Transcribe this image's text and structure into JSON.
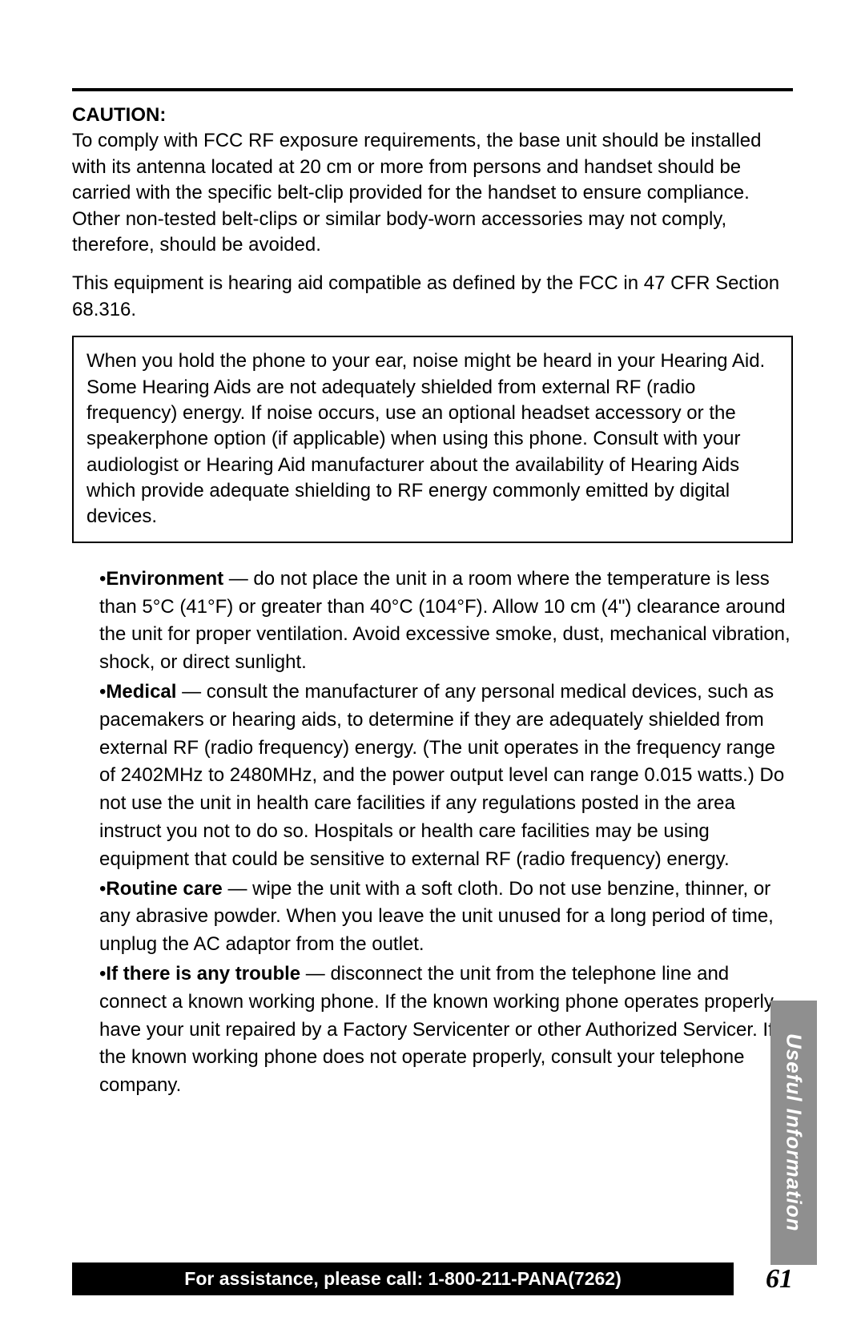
{
  "caution_heading": "CAUTION:",
  "caution_para1": "To comply with FCC RF exposure requirements, the base unit should be installed with its antenna located at 20 cm or more from persons and handset should be carried with the specific belt-clip provided for the handset to ensure compliance. Other non-tested belt-clips or similar body-worn accessories may not comply, therefore, should be avoided.",
  "caution_para2": "This equipment is hearing aid compatible as defined by the FCC in 47 CFR Section 68.316.",
  "boxed_text": "When you hold the phone to your ear, noise might be heard in your Hearing Aid. Some Hearing Aids are not adequately shielded from external RF (radio frequency) energy. If noise occurs, use an optional headset accessory or the speakerphone option (if applicable) when using this phone. Consult with your audiologist or Hearing Aid manufacturer about the availability of Hearing Aids which provide adequate shielding to RF energy commonly emitted by digital devices.",
  "bullets": [
    {
      "label": "Environment",
      "text": " — do not place the unit in a room where the temperature is less than 5°C (41°F) or greater than 40°C (104°F). Allow 10 cm (4\") clearance around the unit for proper ventilation. Avoid excessive smoke, dust, mechanical vibration, shock, or direct sunlight."
    },
    {
      "label": "Medical",
      "text": " — consult the manufacturer of any personal medical devices, such as pacemakers or hearing aids, to determine if they are adequately shielded from external RF (radio frequency) energy. (The unit operates in the frequency range of 2402MHz to 2480MHz, and the power output level can range 0.015 watts.) Do not use the unit in health care facilities if any regulations posted in the area instruct you not to do so. Hospitals or health care facilities may be using equipment that could be sensitive to external RF (radio frequency) energy."
    },
    {
      "label": "Routine care",
      "text": " — wipe the unit with a soft cloth. Do not use benzine, thinner, or any abrasive powder. When you leave the unit unused for a long period of time, unplug the AC adaptor from the outlet."
    },
    {
      "label": "If there is any trouble",
      "text": " — disconnect the unit from the telephone line and connect a known working phone. If the known working phone operates properly, have your unit repaired by a Factory Servicenter or other Authorized Servicer. If the known working phone does not operate properly, consult your telephone company."
    }
  ],
  "side_tab": "Useful Information",
  "footer_text": "For assistance, please call: 1-800-211-PANA(7262)",
  "page_number": "61",
  "colors": {
    "text": "#000000",
    "background": "#ffffff",
    "tab_bg": "#8f8f8f",
    "tab_text": "#ffffff",
    "footer_bg": "#000000",
    "footer_text": "#ffffff"
  },
  "typography": {
    "body_fontsize": 24,
    "heading_weight": "bold",
    "page_number_fontfamily": "Times New Roman",
    "page_number_fontsize": 34
  }
}
